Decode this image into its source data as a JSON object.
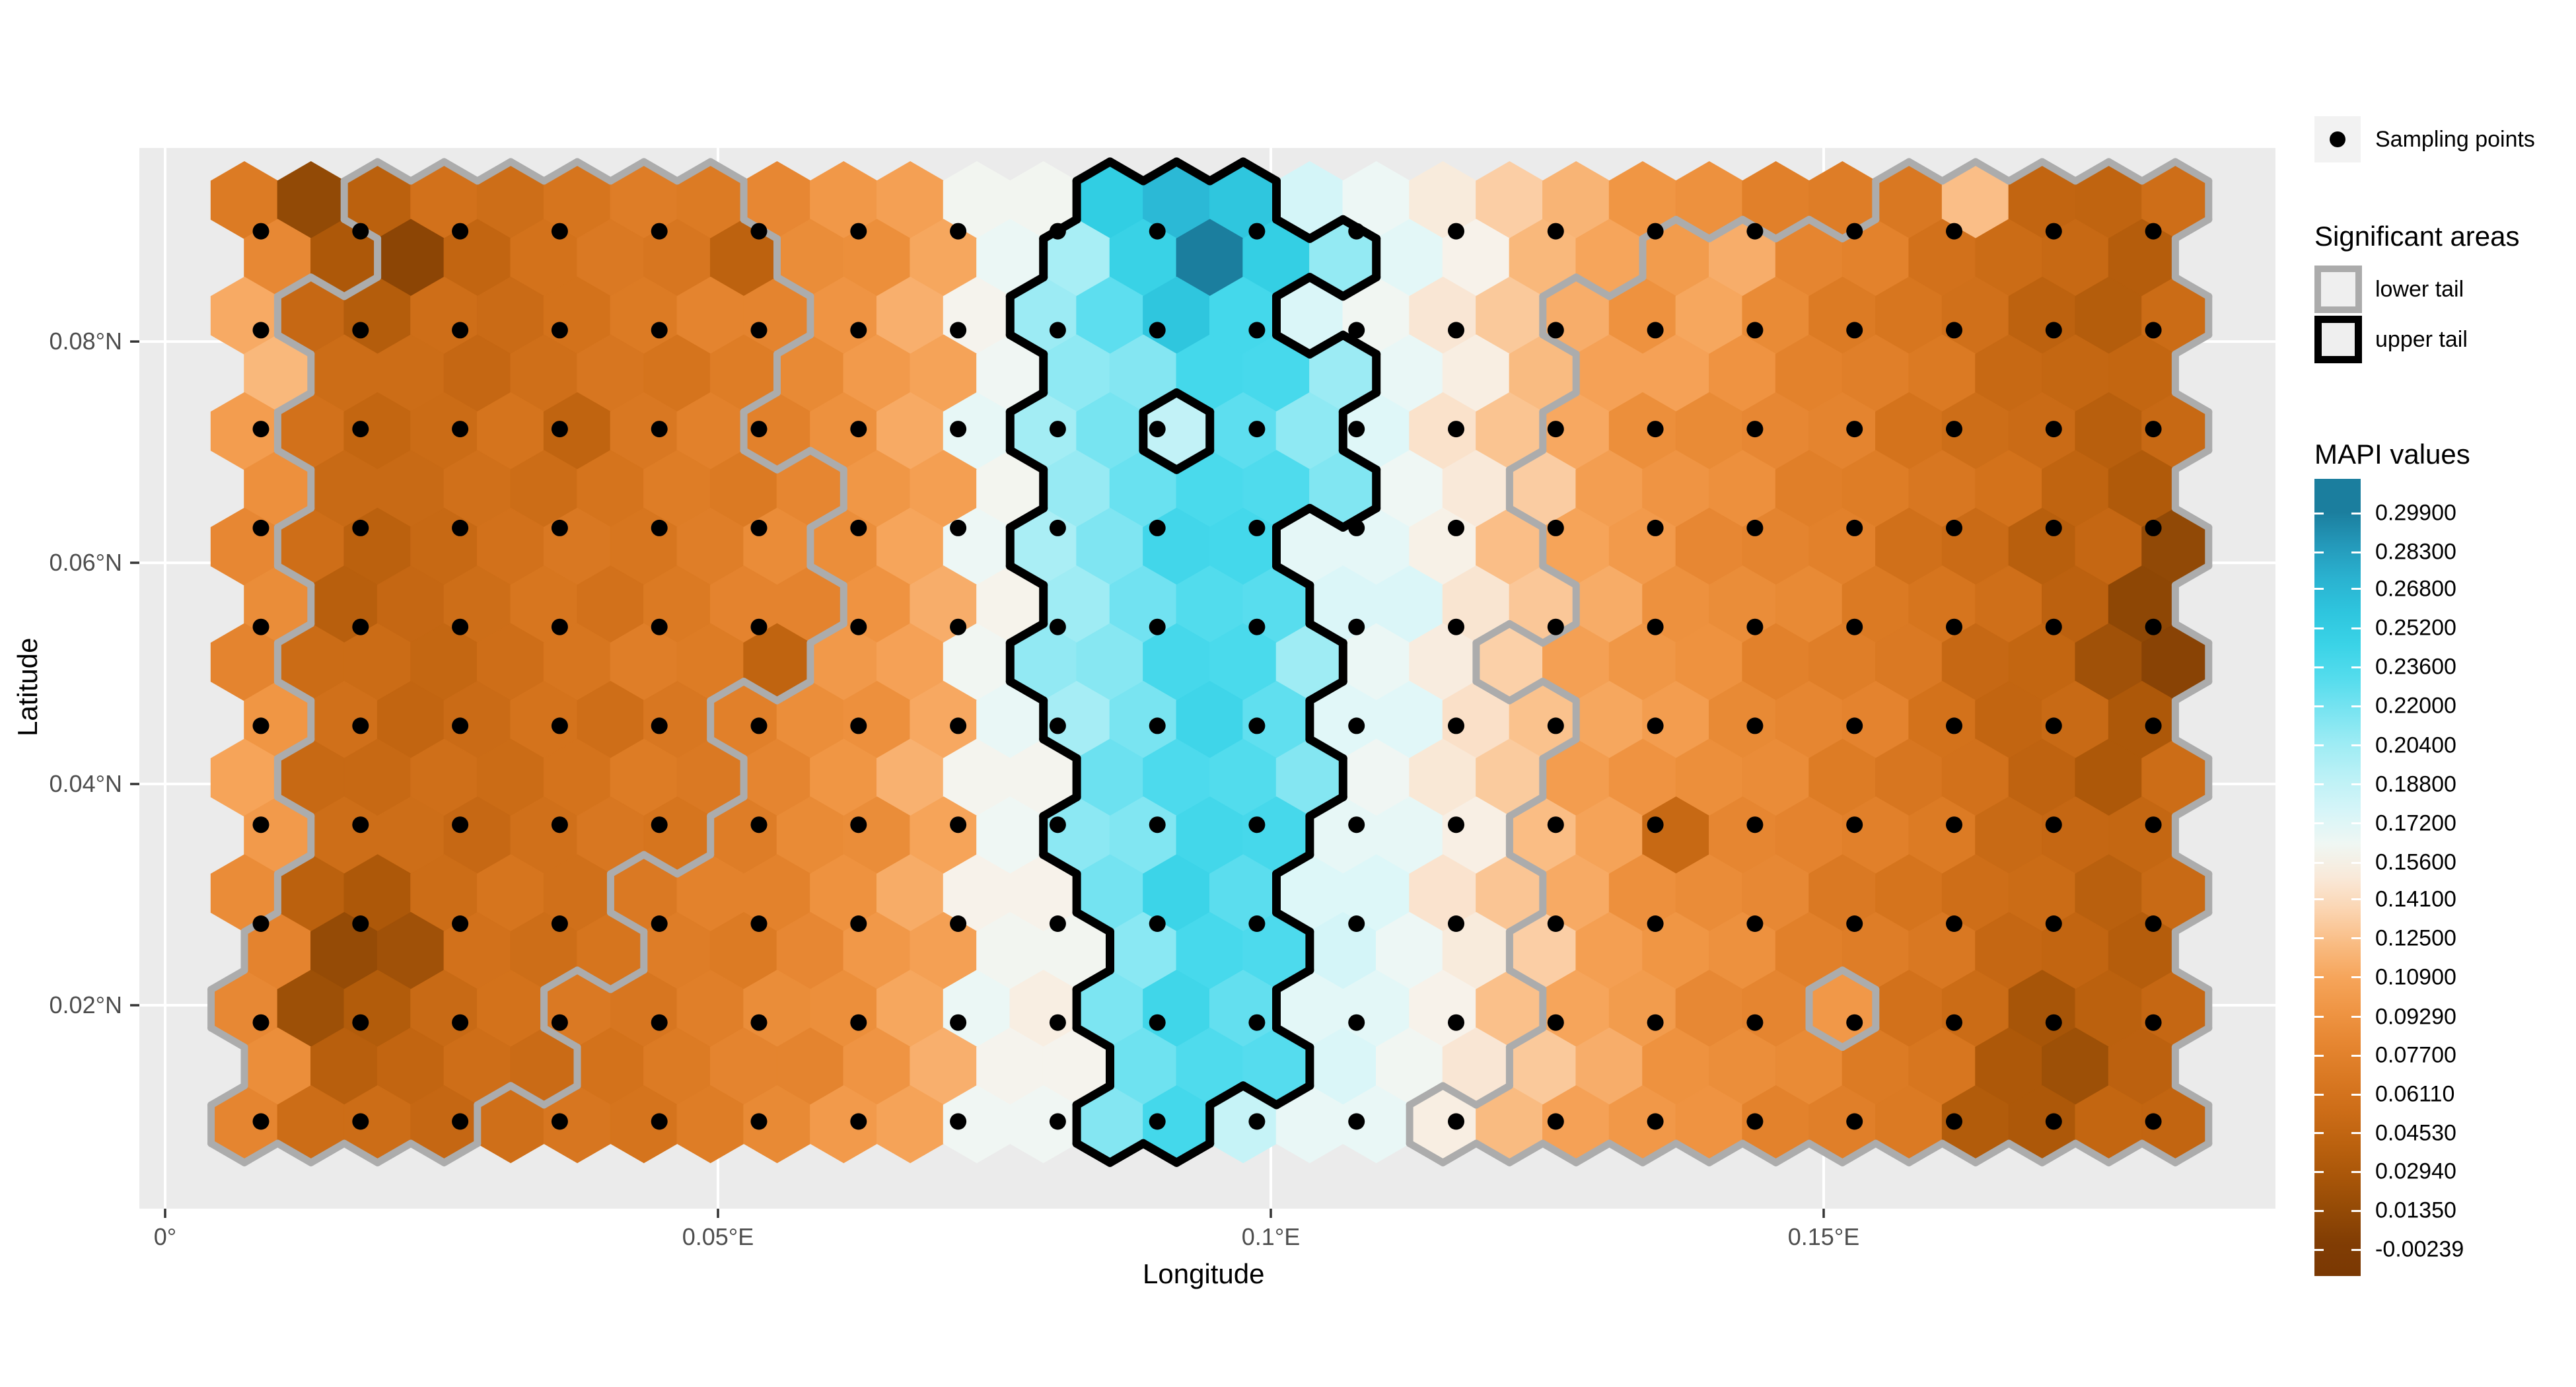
{
  "chart_data": {
    "type": "heatmap",
    "subtype": "hexbin-mapi",
    "xlabel": "Longitude",
    "ylabel": "Latitude",
    "x_range": [
      -0.00233,
      0.19086
    ],
    "y_range": [
      0.00161,
      0.0975
    ],
    "x_ticks": [
      {
        "v": 0.0,
        "label": "0°"
      },
      {
        "v": 0.05,
        "label": "0.05°E"
      },
      {
        "v": 0.1,
        "label": "0.1°E"
      },
      {
        "v": 0.15,
        "label": "0.15°E"
      }
    ],
    "y_ticks": [
      {
        "v": 0.02,
        "label": "0.02°N"
      },
      {
        "v": 0.04,
        "label": "0.04°N"
      },
      {
        "v": 0.06,
        "label": "0.06°N"
      },
      {
        "v": 0.08,
        "label": "0.08°N"
      }
    ],
    "grid": true,
    "panel_bg": "#EBEBEB",
    "grid_color": "#FFFFFF",
    "hex_grid": {
      "rows": 17,
      "cols": 30,
      "lon0": 0.007168,
      "dlon": 0.006022,
      "lat0": 0.09278,
      "dlat": 0.005221,
      "size_lat": 0.003475,
      "col_base": [
        0.085,
        0.054,
        0.05,
        0.053,
        0.058,
        0.062,
        0.068,
        0.074,
        0.083,
        0.094,
        0.11,
        0.162,
        0.158,
        0.172,
        0.19,
        0.182,
        0.172,
        0.168,
        0.15,
        0.128,
        0.108,
        0.096,
        0.088,
        0.081,
        0.074,
        0.064,
        0.054,
        0.047,
        0.042,
        0.05
      ],
      "band_values": {
        "12": 0.205,
        "13": 0.218,
        "14": 0.238,
        "15": 0.232,
        "16": 0.21,
        "17": 0.2
      },
      "patches": [
        [
          0,
          0,
          0.07
        ],
        [
          0,
          1,
          0.013
        ],
        [
          0,
          2,
          0.04
        ],
        [
          1,
          1,
          0.03
        ],
        [
          1,
          2,
          0.008
        ],
        [
          2,
          2,
          0.035
        ],
        [
          1,
          3,
          0.045
        ],
        [
          2,
          0,
          0.112
        ],
        [
          3,
          0,
          0.12
        ],
        [
          4,
          0,
          0.102
        ],
        [
          9,
          0,
          0.096
        ],
        [
          10,
          0,
          0.108
        ],
        [
          11,
          0,
          0.1
        ],
        [
          1,
          7,
          0.042
        ],
        [
          8,
          8,
          0.044
        ],
        [
          4,
          5,
          0.044
        ],
        [
          6,
          2,
          0.04
        ],
        [
          7,
          1,
          0.038
        ],
        [
          12,
          1,
          0.04
        ],
        [
          12,
          2,
          0.03
        ],
        [
          13,
          1,
          0.015
        ],
        [
          13,
          2,
          0.022
        ],
        [
          14,
          1,
          0.02
        ],
        [
          14,
          2,
          0.034
        ],
        [
          15,
          1,
          0.038
        ],
        [
          15,
          2,
          0.045
        ],
        [
          0,
          13,
          0.252
        ],
        [
          0,
          14,
          0.268
        ],
        [
          0,
          15,
          0.258
        ],
        [
          1,
          13,
          0.246
        ],
        [
          1,
          14,
          0.299
        ],
        [
          1,
          15,
          0.25
        ],
        [
          2,
          13,
          0.228
        ],
        [
          2,
          14,
          0.258
        ],
        [
          2,
          15,
          0.238
        ],
        [
          4,
          14,
          0.188
        ],
        [
          2,
          28,
          0.035
        ],
        [
          5,
          28,
          0.032
        ],
        [
          6,
          27,
          0.038
        ],
        [
          6,
          29,
          0.012
        ],
        [
          7,
          28,
          0.01
        ],
        [
          7,
          29,
          0.016
        ],
        [
          8,
          28,
          0.022
        ],
        [
          8,
          29,
          0.006
        ],
        [
          9,
          28,
          0.03
        ],
        [
          9,
          29,
          0.024
        ],
        [
          10,
          28,
          0.03
        ],
        [
          11,
          21,
          0.05
        ],
        [
          9,
          26,
          0.045
        ],
        [
          13,
          28,
          0.036
        ],
        [
          14,
          27,
          0.026
        ],
        [
          14,
          28,
          0.04
        ],
        [
          15,
          26,
          0.03
        ],
        [
          15,
          27,
          0.02
        ],
        [
          16,
          26,
          0.034
        ],
        [
          16,
          27,
          0.03
        ],
        [
          0,
          26,
          0.124
        ],
        [
          1,
          22,
          0.114
        ],
        [
          2,
          22,
          0.11
        ],
        [
          3,
          21,
          0.106
        ],
        [
          14,
          24,
          0.098
        ],
        [
          0,
          20,
          0.118
        ],
        [
          1,
          19,
          0.12
        ]
      ],
      "jitter_amp": 0.006,
      "value_min": -0.00239,
      "value_max": 0.299
    },
    "sampling_points": {
      "lon0": 0.008662,
      "dlon": 0.009008,
      "n_lon": 20,
      "lat0": 0.08997,
      "dlat": 0.008942,
      "n_lat": 10,
      "color": "#000000"
    },
    "significant_areas": {
      "upper": {
        "rows": [
          [
            13,
            15
          ],
          [
            12,
            16
          ],
          [
            12,
            15
          ],
          [
            12,
            15
          ],
          [
            12,
            16
          ],
          [
            12,
            16
          ],
          [
            12,
            15
          ],
          [
            12,
            15
          ],
          [
            12,
            16
          ],
          [
            12,
            15
          ],
          [
            13,
            16
          ],
          [
            12,
            15
          ],
          [
            13,
            15
          ],
          [
            13,
            15
          ],
          [
            13,
            15
          ],
          [
            13,
            15
          ],
          [
            13,
            14
          ]
        ],
        "extras": [
          [
            3,
            16
          ]
        ],
        "holes": [
          [
            4,
            14
          ]
        ],
        "color": "#000000",
        "width": 13
      },
      "lower_left": {
        "rows": [
          [
            2,
            7
          ],
          [
            2,
            7
          ],
          [
            1,
            8
          ],
          [
            1,
            7
          ],
          [
            1,
            7
          ],
          [
            1,
            8
          ],
          [
            1,
            8
          ],
          [
            1,
            8
          ],
          [
            1,
            8
          ],
          [
            1,
            6
          ],
          [
            1,
            7
          ],
          [
            1,
            6
          ],
          [
            1,
            5
          ],
          [
            0,
            5
          ],
          [
            0,
            4
          ],
          [
            0,
            4
          ],
          [
            0,
            3
          ]
        ],
        "extras": [],
        "holes": [],
        "color": "#ACACAC",
        "width": 11
      },
      "lower_right": {
        "rows": [
          [
            25,
            29
          ],
          [
            21,
            29
          ],
          [
            20,
            29
          ],
          [
            20,
            29
          ],
          [
            20,
            29
          ],
          [
            19,
            29
          ],
          [
            20,
            29
          ],
          [
            20,
            29
          ],
          [
            19,
            29
          ],
          [
            20,
            29
          ],
          [
            20,
            29
          ],
          [
            19,
            29
          ],
          [
            20,
            29
          ],
          [
            19,
            29
          ],
          [
            20,
            29
          ],
          [
            19,
            29
          ],
          [
            18,
            29
          ]
        ],
        "extras": [],
        "holes": [
          [
            14,
            24
          ]
        ],
        "color": "#ACACAC",
        "width": 11
      }
    },
    "color_stops": [
      [
        -0.005,
        "#7A3803"
      ],
      [
        0.0135,
        "#934A06"
      ],
      [
        0.0294,
        "#AC5809"
      ],
      [
        0.0453,
        "#C26511"
      ],
      [
        0.0611,
        "#D4731C"
      ],
      [
        0.077,
        "#E2812B"
      ],
      [
        0.0929,
        "#EE923F"
      ],
      [
        0.109,
        "#F6A55B"
      ],
      [
        0.125,
        "#FAC08A"
      ],
      [
        0.141,
        "#FBDCC0"
      ],
      [
        0.156,
        "#F7F2EA"
      ],
      [
        0.164,
        "#EFF7F4"
      ],
      [
        0.172,
        "#DFF7F8"
      ],
      [
        0.188,
        "#C2F2F7"
      ],
      [
        0.204,
        "#9FECF4"
      ],
      [
        0.22,
        "#74E3F1"
      ],
      [
        0.236,
        "#47D9EC"
      ],
      [
        0.252,
        "#31CEE3"
      ],
      [
        0.268,
        "#2BB9D6"
      ],
      [
        0.283,
        "#269FC0"
      ],
      [
        0.299,
        "#1B7E9E"
      ]
    ]
  },
  "legend": {
    "sampling": {
      "label": "Sampling points",
      "key_bg": "#F2F2F2",
      "dot_color": "#000000"
    },
    "significant": {
      "title": "Significant areas",
      "items": [
        {
          "label": "lower tail",
          "border": "#ABABAB",
          "fill": "#EFEFEF"
        },
        {
          "label": "upper tail",
          "border": "#000000",
          "fill": "#EFEFEF"
        }
      ]
    },
    "mapi": {
      "title": "MAPI values",
      "tick_labels": [
        "0.29900",
        "0.28300",
        "0.26800",
        "0.25200",
        "0.23600",
        "0.22000",
        "0.20400",
        "0.18800",
        "0.17200",
        "0.15600",
        "0.14100",
        "0.12500",
        "0.10900",
        "0.09290",
        "0.07700",
        "0.06110",
        "0.04530",
        "0.02940",
        "0.01350",
        "-0.00239"
      ],
      "tick_values": [
        0.299,
        0.283,
        0.268,
        0.252,
        0.236,
        0.22,
        0.204,
        0.188,
        0.172,
        0.156,
        0.141,
        0.125,
        0.109,
        0.0929,
        0.077,
        0.0611,
        0.0453,
        0.0294,
        0.0135,
        -0.00239
      ],
      "bar_top_value": 0.3131,
      "bar_bottom_value": -0.0132
    }
  },
  "axes": {
    "x_title": "Longitude",
    "y_title": "Latitude",
    "tick_color": "#4D4D4D",
    "tick_mark_color": "#333333"
  }
}
